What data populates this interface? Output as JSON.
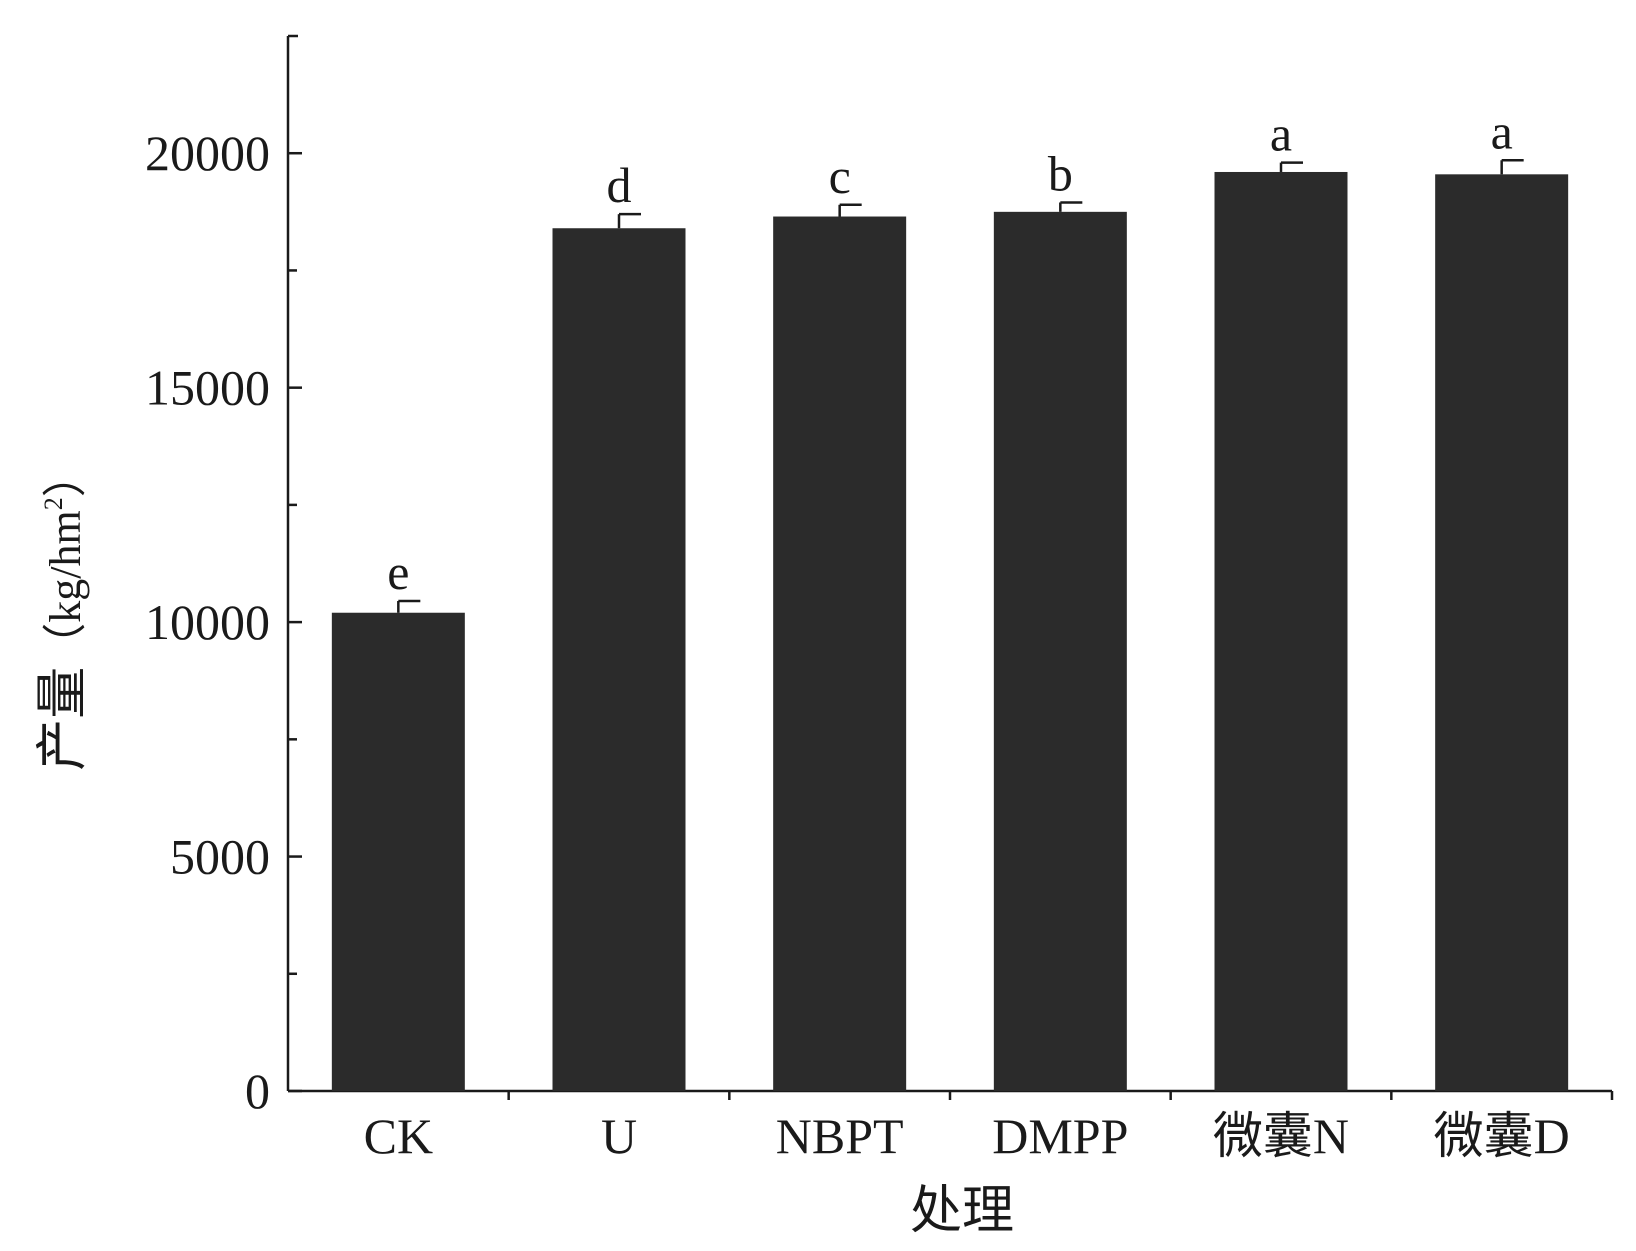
{
  "chart_data": {
    "type": "bar",
    "title": "",
    "xlabel": "处理",
    "ylabel_main": "产量",
    "ylabel_paren_open": "（",
    "ylabel_unit": "kg/hm",
    "ylabel_unit_sup": "2",
    "ylabel_paren_close": "）",
    "ylim": [
      0,
      22500
    ],
    "yticks_major": [
      0,
      5000,
      10000,
      15000,
      20000
    ],
    "ytick_labels": [
      "0",
      "5000",
      "10000",
      "15000",
      "20000"
    ],
    "yticks_minor": [
      2500,
      7500,
      12500,
      17500
    ],
    "grid": false,
    "categories": [
      "CK",
      "U",
      "NBPT",
      "DMPP",
      "微囊N",
      "微囊D"
    ],
    "values": [
      10200,
      18400,
      18650,
      18750,
      19600,
      19550
    ],
    "errors": [
      250,
      300,
      250,
      200,
      200,
      300
    ],
    "significance_letters": [
      "e",
      "d",
      "c",
      "b",
      "a",
      "a"
    ],
    "bar_color": "#2b2b2b",
    "axis_color": "#1a1a1a"
  }
}
